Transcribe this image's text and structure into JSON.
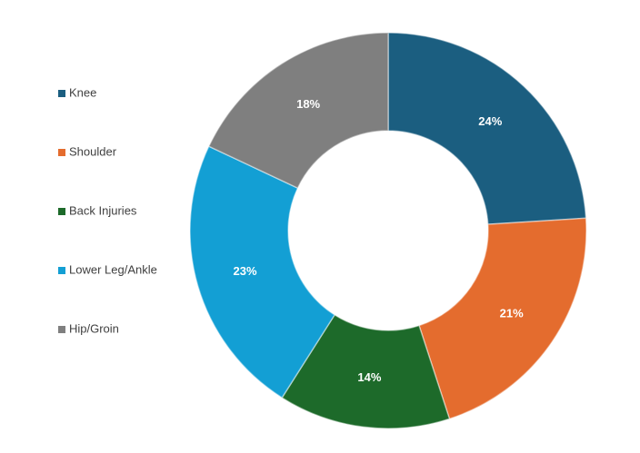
{
  "chart_data": {
    "type": "donut",
    "categories": [
      "Knee",
      "Shoulder",
      "Back Injuries",
      "Lower Leg/Ankle",
      "Hip/Groin"
    ],
    "values": [
      24,
      21,
      14,
      23,
      18
    ],
    "value_labels": [
      "24%",
      "21%",
      "14%",
      "23%",
      "18%"
    ],
    "colors": [
      "#1b5e80",
      "#e46c2e",
      "#1d6a2a",
      "#139fd4",
      "#7f7f7f"
    ],
    "legend": "left"
  }
}
